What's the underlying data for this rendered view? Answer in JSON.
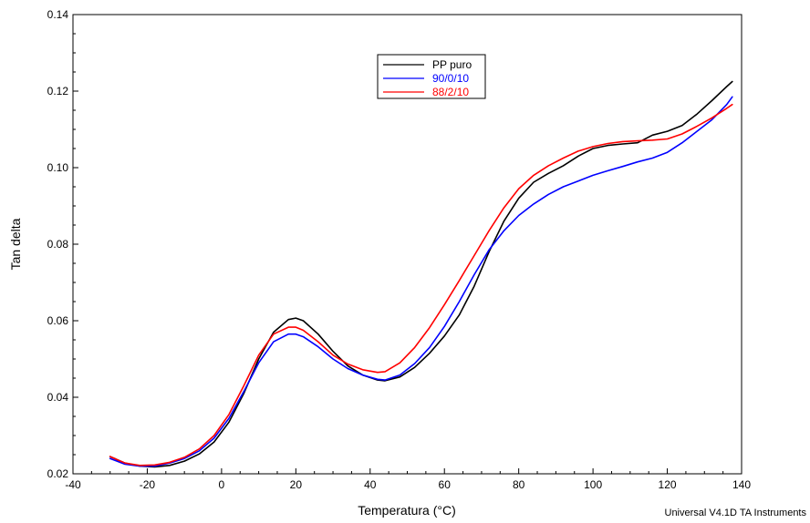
{
  "chart_data": {
    "type": "line",
    "xlabel": "Temperatura (°C)",
    "ylabel": "Tan delta",
    "xlim": [
      -40,
      140
    ],
    "ylim": [
      0.02,
      0.14
    ],
    "x_ticks": [
      -40,
      -20,
      0,
      20,
      40,
      60,
      80,
      100,
      120,
      140
    ],
    "y_ticks": [
      0.02,
      0.04,
      0.06,
      0.08,
      0.1,
      0.12,
      0.14
    ],
    "y_tick_labels": [
      "0.02",
      "0.04",
      "0.06",
      "0.08",
      "0.10",
      "0.12",
      "0.14"
    ],
    "grid": false,
    "legend_position": "top-center",
    "footer": "Universal V4.1D TA Instruments",
    "series": [
      {
        "name": "PP puro",
        "color": "#000000",
        "x": [
          -30,
          -26,
          -22,
          -18,
          -14,
          -10,
          -6,
          -2,
          2,
          6,
          10,
          14,
          18,
          20,
          22,
          26,
          30,
          34,
          38,
          42,
          44,
          48,
          52,
          56,
          60,
          64,
          68,
          72,
          76,
          80,
          84,
          88,
          92,
          96,
          100,
          104,
          108,
          112,
          116,
          120,
          124,
          128,
          132,
          136,
          137.5
        ],
        "y": [
          0.0245,
          0.0228,
          0.022,
          0.0218,
          0.0222,
          0.0233,
          0.0252,
          0.0283,
          0.0335,
          0.041,
          0.05,
          0.057,
          0.0603,
          0.0607,
          0.06,
          0.0565,
          0.052,
          0.0482,
          0.0458,
          0.0445,
          0.0443,
          0.0453,
          0.0478,
          0.0515,
          0.056,
          0.0615,
          0.069,
          0.078,
          0.086,
          0.092,
          0.0962,
          0.0985,
          0.1005,
          0.103,
          0.105,
          0.1058,
          0.1062,
          0.1065,
          0.1085,
          0.1095,
          0.111,
          0.114,
          0.1175,
          0.1212,
          0.1225
        ]
      },
      {
        "name": "90/0/10",
        "color": "#0000ff",
        "x": [
          -30,
          -26,
          -22,
          -18,
          -14,
          -10,
          -6,
          -2,
          2,
          6,
          10,
          14,
          18,
          20,
          22,
          26,
          30,
          34,
          38,
          42,
          44,
          48,
          52,
          56,
          60,
          64,
          68,
          72,
          76,
          80,
          84,
          88,
          92,
          96,
          100,
          104,
          108,
          112,
          116,
          120,
          124,
          128,
          132,
          136,
          137.5
        ],
        "y": [
          0.024,
          0.0225,
          0.022,
          0.022,
          0.0228,
          0.024,
          0.026,
          0.0293,
          0.0345,
          0.0415,
          0.049,
          0.0545,
          0.0565,
          0.0565,
          0.0558,
          0.0532,
          0.05,
          0.0475,
          0.0458,
          0.0447,
          0.0445,
          0.0458,
          0.0488,
          0.053,
          0.0585,
          0.065,
          0.072,
          0.0785,
          0.0835,
          0.0875,
          0.0905,
          0.093,
          0.095,
          0.0965,
          0.098,
          0.0992,
          0.1003,
          0.1015,
          0.1025,
          0.104,
          0.1065,
          0.1095,
          0.1125,
          0.1165,
          0.1185
        ]
      },
      {
        "name": "88/2/10",
        "color": "#ff0000",
        "x": [
          -30,
          -26,
          -22,
          -18,
          -14,
          -10,
          -6,
          -2,
          2,
          6,
          10,
          14,
          18,
          20,
          22,
          26,
          30,
          34,
          38,
          42,
          44,
          48,
          52,
          56,
          60,
          64,
          68,
          72,
          76,
          80,
          84,
          88,
          92,
          96,
          100,
          104,
          108,
          112,
          116,
          120,
          124,
          128,
          132,
          136,
          137.5
        ],
        "y": [
          0.0245,
          0.0228,
          0.0222,
          0.0223,
          0.023,
          0.0243,
          0.0265,
          0.03,
          0.0355,
          0.043,
          0.051,
          0.0565,
          0.0583,
          0.0583,
          0.0575,
          0.0545,
          0.051,
          0.0487,
          0.0472,
          0.0465,
          0.0467,
          0.049,
          0.053,
          0.0582,
          0.0642,
          0.0705,
          0.077,
          0.0835,
          0.0895,
          0.0945,
          0.098,
          0.1005,
          0.1025,
          0.1043,
          0.1055,
          0.1063,
          0.1068,
          0.107,
          0.1072,
          0.1075,
          0.1088,
          0.1108,
          0.113,
          0.1155,
          0.1165
        ]
      }
    ]
  }
}
